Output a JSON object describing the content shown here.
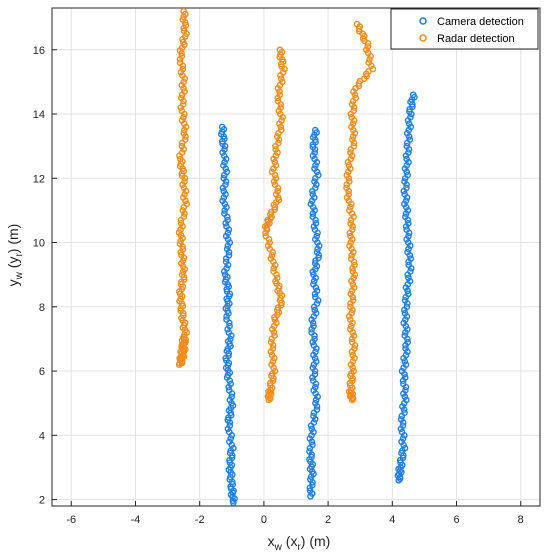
{
  "chart_data": {
    "type": "scatter",
    "xlabel": {
      "main": "x",
      "sub_main": "w",
      "paren_open": " (x",
      "sub_paren": "r",
      "paren_close": ") (m)"
    },
    "ylabel": {
      "main": "y",
      "sub_main": "w",
      "paren_open": " (y",
      "sub_paren": "r",
      "paren_close": ") (m)"
    },
    "xlim": [
      -6.6,
      8.6
    ],
    "ylim": [
      1.8,
      17.3
    ],
    "xticks": [
      -6,
      -4,
      -2,
      0,
      2,
      4,
      6,
      8
    ],
    "yticks": [
      2,
      4,
      6,
      8,
      10,
      12,
      14,
      16
    ],
    "grid": true,
    "legend_position": "top-right",
    "series": [
      {
        "name": "Camera detection",
        "color": "#1f7fe6",
        "tracks": [
          {
            "x": [
              -1.3,
              -1.25,
              -1.2,
              -1.25,
              -1.15,
              -1.1,
              -1.2,
              -1.1,
              -1.15,
              -1.05,
              -1.15,
              -1.1,
              -1.0,
              -1.1,
              -1.0,
              -1.05,
              -1.0,
              -0.95
            ],
            "y": [
              13.6,
              13.0,
              12.2,
              11.4,
              10.6,
              9.8,
              9.0,
              8.4,
              7.8,
              7.0,
              6.4,
              5.8,
              5.0,
              4.4,
              3.6,
              3.0,
              2.4,
              1.9
            ]
          },
          {
            "x": [
              1.6,
              1.55,
              1.65,
              1.5,
              1.6,
              1.7,
              1.55,
              1.65,
              1.5,
              1.6,
              1.55,
              1.65,
              1.5,
              1.45,
              1.5,
              1.45
            ],
            "y": [
              13.5,
              12.9,
              12.1,
              11.3,
              10.5,
              9.7,
              9.0,
              8.2,
              7.4,
              6.6,
              5.8,
              5.0,
              4.2,
              3.4,
              2.8,
              2.1
            ]
          },
          {
            "x": [
              4.65,
              4.55,
              4.5,
              4.45,
              4.4,
              4.45,
              4.5,
              4.55,
              4.45,
              4.4,
              4.45,
              4.35,
              4.4,
              4.3,
              4.35,
              4.25,
              4.2
            ],
            "y": [
              14.6,
              14.0,
              13.2,
              12.4,
              11.6,
              10.8,
              10.0,
              9.2,
              8.4,
              7.6,
              6.8,
              6.0,
              5.2,
              4.4,
              3.6,
              3.0,
              2.6
            ]
          }
        ]
      },
      {
        "name": "Radar detection",
        "color": "#f28c1a",
        "tracks": [
          {
            "x": [
              -2.5,
              -2.45,
              -2.6,
              -2.5,
              -2.55,
              -2.45,
              -2.6,
              -2.5,
              -2.45,
              -2.6,
              -2.55,
              -2.5,
              -2.6,
              -2.55,
              -2.45,
              -2.5,
              -2.6,
              -2.55,
              -2.5
            ],
            "y": [
              17.2,
              16.5,
              15.8,
              15.0,
              14.2,
              13.4,
              12.6,
              12.0,
              11.2,
              10.4,
              9.7,
              9.0,
              8.4,
              7.8,
              7.2,
              6.6,
              6.2,
              6.6,
              7.0
            ]
          },
          {
            "x": [
              0.5,
              0.6,
              0.45,
              0.55,
              0.4,
              0.3,
              0.45,
              0.2,
              0.05,
              0.25,
              0.4,
              0.55,
              0.35,
              0.25,
              0.3,
              0.2,
              0.15
            ],
            "y": [
              16.0,
              15.4,
              14.6,
              13.8,
              13.0,
              12.2,
              11.4,
              10.8,
              10.4,
              9.6,
              8.8,
              8.2,
              7.6,
              6.8,
              6.0,
              5.4,
              5.1
            ]
          },
          {
            "x": [
              2.9,
              3.2,
              3.35,
              2.85,
              2.75,
              2.8,
              2.65,
              2.6,
              2.75,
              2.7,
              2.8,
              2.75,
              2.7,
              2.8,
              2.75,
              2.7,
              2.75
            ],
            "y": [
              16.8,
              16.2,
              15.4,
              14.8,
              14.0,
              13.2,
              12.4,
              11.6,
              10.8,
              10.0,
              9.2,
              8.4,
              7.6,
              6.8,
              6.0,
              5.4,
              5.1
            ]
          }
        ]
      }
    ]
  }
}
